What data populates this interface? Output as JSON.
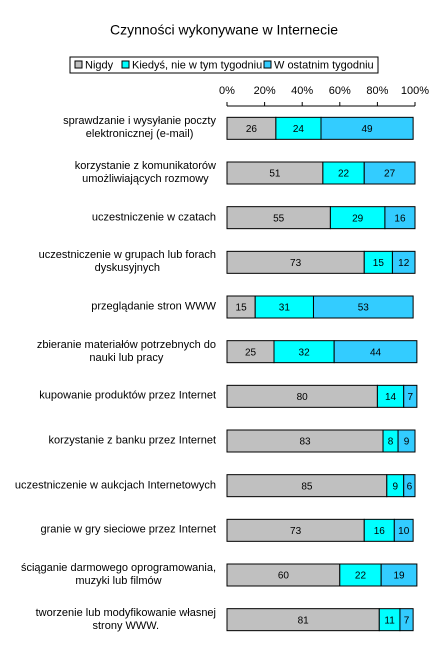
{
  "chart_data": {
    "type": "stacked-bar-horizontal",
    "title": "Czynności wykonywane w Internecie",
    "categories": [
      "sprawdzanie i wysyłanie poczty\nelektronicznej (e-mail)",
      "korzystanie z komunikatorów\numożliwiających rozmowy",
      "uczestniczenie w czatach",
      "uczestniczenie w grupach lub forach\ndyskusyjnych",
      "przeglądanie stron WWW",
      "zbieranie materiałów potrzebnych do\nnauki lub pracy",
      "kupowanie produktów przez Internet",
      "korzystanie z banku przez Internet",
      "uczestniczenie w aukcjach Internetowych",
      "granie w gry sieciowe przez Internet",
      "ściąganie darmowego oprogramowania,\nmuzyki lub filmów",
      "tworzenie lub modyfikowanie własnej\nstrony WWW."
    ],
    "series": [
      {
        "name": "Nigdy",
        "color": "#c0c0c0",
        "values": [
          26,
          51,
          55,
          73,
          15,
          25,
          80,
          83,
          85,
          73,
          60,
          81
        ]
      },
      {
        "name": "Kiedyś, nie w tym tygodniu",
        "color": "#00ffff",
        "values": [
          24,
          22,
          29,
          15,
          31,
          32,
          14,
          8,
          9,
          16,
          22,
          11
        ]
      },
      {
        "name": "W ostatnim tygodniu",
        "color": "#33ccff",
        "values": [
          49,
          27,
          16,
          12,
          53,
          44,
          7,
          9,
          6,
          10,
          19,
          7
        ]
      }
    ],
    "xlim": [
      0,
      100
    ],
    "xticks": [
      {
        "value": 0,
        "label": "0%"
      },
      {
        "value": 20,
        "label": "20%"
      },
      {
        "value": 40,
        "label": "40%"
      },
      {
        "value": 60,
        "label": "60%"
      },
      {
        "value": 80,
        "label": "80%"
      },
      {
        "value": 100,
        "label": "100%"
      }
    ],
    "legend": "top"
  }
}
